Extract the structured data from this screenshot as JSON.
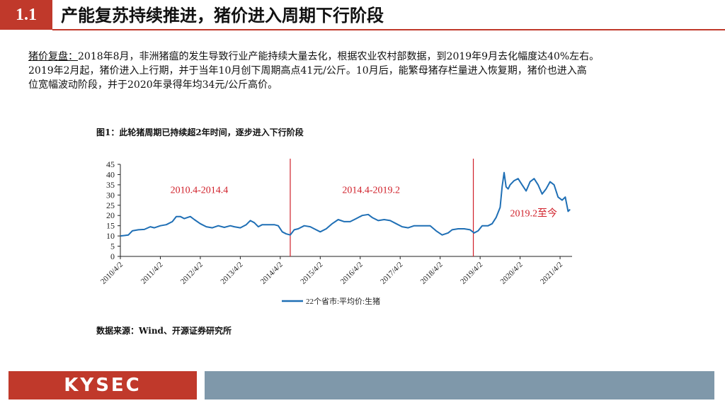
{
  "header": {
    "section_number": "1.1",
    "title": "产能复苏持续推进，猪价进入周期下行阶段"
  },
  "paragraph": {
    "lead": "猪价复盘：",
    "line1": "2018年8月，非洲猪瘟的发生导致行业产能持续大量去化，根据农业农村部数据，到2019年9月去化幅度达40%左右。",
    "line2": "2019年2月起，猪价进入上行期，并于当年10月创下周期高点41元/公斤。10月后，能繁母猪存栏量进入恢复期，猪价也进入高",
    "line3": "位宽幅波动阶段，并于2020年录得年均34元/公斤高价。"
  },
  "figure": {
    "title": "图1：此轮猪周期已持续超2年时间，逐步进入下行阶段",
    "source": "数据来源：Wind、开源证券研究所"
  },
  "chart_data": {
    "type": "line",
    "legend_position": "bottom",
    "ylim": [
      0,
      45
    ],
    "yticks": [
      "0",
      "5",
      "10",
      "15",
      "20",
      "25",
      "30",
      "35",
      "40",
      "45"
    ],
    "xticks": [
      "2010/4/2",
      "2011/4/2",
      "2012/4/2",
      "2013/4/2",
      "2014/4/2",
      "2015/4/2",
      "2016/4/2",
      "2017/4/2",
      "2018/4/2",
      "2019/4/2",
      "2020/4/2",
      "2021/4/2"
    ],
    "xlim": [
      2010.25,
      2021.55
    ],
    "series": [
      {
        "name": "22个省市:平均价:生猪",
        "color": "#1f6fb5",
        "points": [
          [
            2010.25,
            10
          ],
          [
            2010.35,
            10.2
          ],
          [
            2010.45,
            10.5
          ],
          [
            2010.55,
            12.5
          ],
          [
            2010.7,
            13
          ],
          [
            2010.85,
            13.2
          ],
          [
            2011.0,
            14.5
          ],
          [
            2011.1,
            14
          ],
          [
            2011.25,
            15
          ],
          [
            2011.4,
            15.5
          ],
          [
            2011.55,
            17
          ],
          [
            2011.65,
            19.5
          ],
          [
            2011.75,
            19.5
          ],
          [
            2011.85,
            18.5
          ],
          [
            2012.0,
            19.5
          ],
          [
            2012.1,
            18
          ],
          [
            2012.25,
            16
          ],
          [
            2012.4,
            14.5
          ],
          [
            2012.55,
            14
          ],
          [
            2012.7,
            15
          ],
          [
            2012.85,
            14.2
          ],
          [
            2013.0,
            15
          ],
          [
            2013.1,
            14.5
          ],
          [
            2013.25,
            14
          ],
          [
            2013.4,
            15.5
          ],
          [
            2013.5,
            17.5
          ],
          [
            2013.6,
            16.5
          ],
          [
            2013.7,
            14.5
          ],
          [
            2013.8,
            15.5
          ],
          [
            2013.95,
            15.5
          ],
          [
            2014.1,
            15.5
          ],
          [
            2014.2,
            15
          ],
          [
            2014.3,
            12
          ],
          [
            2014.4,
            11
          ],
          [
            2014.5,
            10.5
          ],
          [
            2014.6,
            13
          ],
          [
            2014.7,
            13.5
          ],
          [
            2014.85,
            15
          ],
          [
            2015.0,
            14.5
          ],
          [
            2015.1,
            13.5
          ],
          [
            2015.25,
            12
          ],
          [
            2015.4,
            13.5
          ],
          [
            2015.55,
            16
          ],
          [
            2015.7,
            18
          ],
          [
            2015.85,
            17
          ],
          [
            2016.0,
            17
          ],
          [
            2016.15,
            18.5
          ],
          [
            2016.3,
            20
          ],
          [
            2016.45,
            20.5
          ],
          [
            2016.55,
            19
          ],
          [
            2016.7,
            17.5
          ],
          [
            2016.85,
            18
          ],
          [
            2017.0,
            17.5
          ],
          [
            2017.15,
            16
          ],
          [
            2017.3,
            14.5
          ],
          [
            2017.45,
            14
          ],
          [
            2017.6,
            15
          ],
          [
            2017.8,
            15
          ],
          [
            2018.0,
            15
          ],
          [
            2018.15,
            12.5
          ],
          [
            2018.3,
            10.5
          ],
          [
            2018.45,
            11.5
          ],
          [
            2018.55,
            13
          ],
          [
            2018.7,
            13.5
          ],
          [
            2018.85,
            13.5
          ],
          [
            2019.0,
            13
          ],
          [
            2019.1,
            11.5
          ],
          [
            2019.2,
            12.5
          ],
          [
            2019.3,
            15
          ],
          [
            2019.45,
            15
          ],
          [
            2019.55,
            16
          ],
          [
            2019.65,
            19
          ],
          [
            2019.75,
            24
          ],
          [
            2019.8,
            34
          ],
          [
            2019.85,
            41
          ],
          [
            2019.9,
            34
          ],
          [
            2019.95,
            33
          ],
          [
            2020.0,
            35
          ],
          [
            2020.1,
            37
          ],
          [
            2020.2,
            38
          ],
          [
            2020.3,
            35
          ],
          [
            2020.4,
            32
          ],
          [
            2020.5,
            36.5
          ],
          [
            2020.6,
            38
          ],
          [
            2020.7,
            35
          ],
          [
            2020.8,
            30.5
          ],
          [
            2020.9,
            33
          ],
          [
            2021.0,
            36.5
          ],
          [
            2021.1,
            35
          ],
          [
            2021.2,
            29
          ],
          [
            2021.3,
            27.5
          ],
          [
            2021.38,
            29
          ],
          [
            2021.45,
            22
          ],
          [
            2021.5,
            23
          ]
        ]
      }
    ],
    "vlines": [
      2014.5,
      2019.08
    ],
    "annotations": [
      {
        "text": "2010.4-2014.4",
        "x": 2011.5,
        "y": 31
      },
      {
        "text": "2014.4-2019.2",
        "x": 2015.8,
        "y": 31
      },
      {
        "text": "2019.2至今",
        "x": 2020.0,
        "y": 19.5
      }
    ]
  },
  "footer": {
    "logo": "KYSEC"
  },
  "colors": {
    "accent": "#c0392b",
    "line": "#1f6fb5",
    "footer_bar": "#7f98aa"
  }
}
